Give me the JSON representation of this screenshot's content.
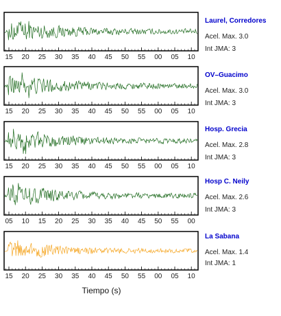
{
  "chart_data": {
    "type": "line",
    "xlabel": "Tiempo (s)",
    "panels": [
      {
        "station": "Laurel, Corredores",
        "acel_label": "Acel. Max. 3.0",
        "int_label": "Int JMA: 3",
        "color": "#1f6b1f",
        "amplitude": 3.0,
        "ticks": [
          "15",
          "20",
          "25",
          "30",
          "35",
          "40",
          "45",
          "50",
          "55",
          "00",
          "05",
          "10"
        ]
      },
      {
        "station": "OV–Guacimo",
        "acel_label": "Acel. Max. 3.0",
        "int_label": "Int JMA: 3",
        "color": "#1f6b1f",
        "amplitude": 3.0,
        "ticks": [
          "15",
          "20",
          "25",
          "30",
          "35",
          "40",
          "45",
          "50",
          "55",
          "00",
          "05",
          "10"
        ]
      },
      {
        "station": "Hosp. Grecia",
        "acel_label": "Acel. Max. 2.8",
        "int_label": "Int JMA: 3",
        "color": "#1f6b1f",
        "amplitude": 2.8,
        "ticks": [
          "15",
          "20",
          "25",
          "30",
          "35",
          "40",
          "45",
          "50",
          "55",
          "00",
          "05",
          "10"
        ]
      },
      {
        "station": "Hosp C. Neily",
        "acel_label": "Acel. Max. 2.6",
        "int_label": "Int JMA: 3",
        "color": "#1f6b1f",
        "amplitude": 2.6,
        "ticks": [
          "05",
          "10",
          "15",
          "20",
          "25",
          "30",
          "35",
          "40",
          "45",
          "50",
          "55",
          "00"
        ]
      },
      {
        "station": "La Sabana",
        "acel_label": "Acel. Max. 1.4",
        "int_label": "Int JMA: 1",
        "color": "#f5a623",
        "amplitude": 1.4,
        "ticks": [
          "15",
          "20",
          "25",
          "30",
          "35",
          "40",
          "45",
          "50",
          "55",
          "00",
          "05",
          "10"
        ]
      }
    ]
  }
}
